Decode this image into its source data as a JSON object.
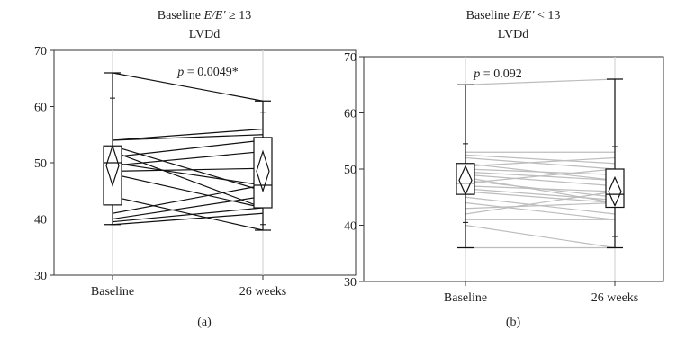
{
  "chart_data": [
    {
      "type": "line",
      "panel_label": "(a)",
      "title_prefix": "Baseline ",
      "title_var": "E/E′",
      "title_suffix": " ≥ 13",
      "subtitle": "LVDd",
      "categories": [
        "Baseline",
        "26 weeks"
      ],
      "ylim": [
        30,
        70
      ],
      "yticks": [
        30,
        40,
        50,
        60,
        70
      ],
      "grid": false,
      "line_color": "#111111",
      "annotation": "p = 0.0049*",
      "series": [
        {
          "values": [
            66,
            61
          ]
        },
        {
          "values": [
            54,
            55
          ]
        },
        {
          "values": [
            54,
            56
          ]
        },
        {
          "values": [
            53,
            45
          ]
        },
        {
          "values": [
            52,
            42
          ]
        },
        {
          "values": [
            51,
            54
          ]
        },
        {
          "values": [
            50,
            46
          ]
        },
        {
          "values": [
            49.5,
            52
          ]
        },
        {
          "values": [
            48.5,
            49
          ]
        },
        {
          "values": [
            48,
            42
          ]
        },
        {
          "values": [
            44,
            38
          ]
        },
        {
          "values": [
            41,
            46
          ]
        },
        {
          "values": [
            40,
            44
          ]
        },
        {
          "values": [
            39.5,
            42
          ]
        },
        {
          "values": [
            39,
            41
          ]
        }
      ],
      "boxplots": [
        {
          "category": "Baseline",
          "min": 39,
          "q1": 42.5,
          "median": 50,
          "q3": 53,
          "max": 66,
          "mean": 49.5,
          "ci": [
            46,
            53
          ],
          "sd": [
            39,
            61.5
          ]
        },
        {
          "category": "26 weeks",
          "min": 38,
          "q1": 42,
          "median": 46,
          "q3": 54.5,
          "max": 61,
          "mean": 48.5,
          "ci": [
            45,
            52
          ],
          "sd": [
            39,
            59
          ]
        }
      ]
    },
    {
      "type": "line",
      "panel_label": "(b)",
      "title_prefix": "Baseline ",
      "title_var": "E/E′",
      "title_suffix": " < 13",
      "subtitle": "LVDd",
      "categories": [
        "Baseline",
        "26 weeks"
      ],
      "ylim": [
        30,
        70
      ],
      "yticks": [
        30,
        40,
        50,
        60,
        70
      ],
      "grid": false,
      "line_color": "#bdbdbd",
      "annotation": "p = 0.092",
      "series": [
        {
          "values": [
            65,
            66
          ]
        },
        {
          "values": [
            53,
            53
          ]
        },
        {
          "values": [
            52.5,
            51
          ]
        },
        {
          "values": [
            52,
            50
          ]
        },
        {
          "values": [
            51,
            48
          ]
        },
        {
          "values": [
            50.5,
            52
          ]
        },
        {
          "values": [
            50,
            49
          ]
        },
        {
          "values": [
            49.5,
            48
          ]
        },
        {
          "values": [
            49,
            47
          ]
        },
        {
          "values": [
            48.5,
            44
          ]
        },
        {
          "values": [
            48,
            45
          ]
        },
        {
          "values": [
            47.5,
            50
          ]
        },
        {
          "values": [
            47,
            46
          ]
        },
        {
          "values": [
            46.5,
            44.5
          ]
        },
        {
          "values": [
            46,
            44
          ]
        },
        {
          "values": [
            45,
            42
          ]
        },
        {
          "values": [
            44,
            41
          ]
        },
        {
          "values": [
            43,
            44
          ]
        },
        {
          "values": [
            42,
            46
          ]
        },
        {
          "values": [
            41,
            41
          ]
        },
        {
          "values": [
            40,
            36
          ]
        },
        {
          "values": [
            36,
            36
          ]
        }
      ],
      "boxplots": [
        {
          "category": "Baseline",
          "min": 36,
          "q1": 45.5,
          "median": 47.5,
          "q3": 51,
          "max": 65,
          "mean": 48,
          "ci": [
            45.5,
            50.5
          ],
          "sd": [
            40.5,
            54.5
          ]
        },
        {
          "category": "26 weeks",
          "min": 36,
          "q1": 43.2,
          "median": 45.5,
          "q3": 50,
          "max": 66,
          "mean": 46,
          "ci": [
            43.5,
            48.5
          ],
          "sd": [
            38,
            54
          ]
        }
      ]
    }
  ]
}
